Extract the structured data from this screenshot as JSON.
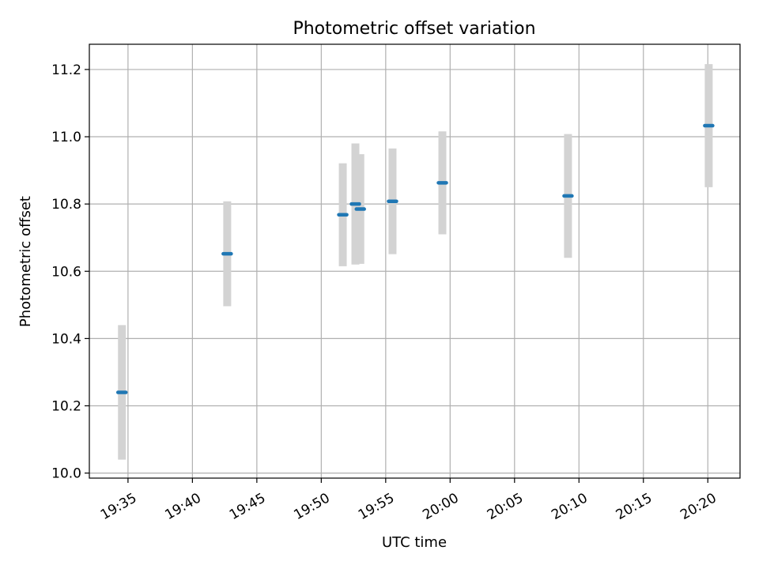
{
  "chart_data": {
    "type": "scatter",
    "title": "Photometric offset variation",
    "xlabel": "UTC time",
    "ylabel": "Photometric offset",
    "x_ticks": [
      "19:35",
      "19:40",
      "19:45",
      "19:50",
      "19:55",
      "20:00",
      "20:05",
      "20:10",
      "20:15",
      "20:20"
    ],
    "x_tick_minutes": [
      1175,
      1180,
      1185,
      1190,
      1195,
      1200,
      1205,
      1210,
      1215,
      1220
    ],
    "xlim_minutes": [
      1172.0,
      1222.5
    ],
    "ylim": [
      9.985,
      11.275
    ],
    "y_ticks": [
      "10.0",
      "10.2",
      "10.4",
      "10.6",
      "10.8",
      "11.0",
      "11.2"
    ],
    "y_tick_values": [
      10.0,
      10.2,
      10.4,
      10.6,
      10.8,
      11.0,
      11.2
    ],
    "grid": true,
    "colors": {
      "marker": "#1f77b4",
      "errorbar": "#d3d3d3",
      "grid": "#b0b0b0"
    },
    "points": [
      {
        "time": "19:34:32",
        "t": 1174.53,
        "y": 10.24,
        "err": 0.2
      },
      {
        "time": "19:42:42",
        "t": 1182.7,
        "y": 10.652,
        "err": 0.156
      },
      {
        "time": "19:51:40",
        "t": 1191.67,
        "y": 10.768,
        "err": 0.153
      },
      {
        "time": "19:52:39",
        "t": 1192.65,
        "y": 10.8,
        "err": 0.18
      },
      {
        "time": "19:53:02",
        "t": 1193.03,
        "y": 10.785,
        "err": 0.163
      },
      {
        "time": "19:55:32",
        "t": 1195.53,
        "y": 10.808,
        "err": 0.157
      },
      {
        "time": "19:59:24",
        "t": 1199.4,
        "y": 10.863,
        "err": 0.153
      },
      {
        "time": "20:09:09",
        "t": 1209.15,
        "y": 10.824,
        "err": 0.184
      },
      {
        "time": "20:20:04",
        "t": 1220.07,
        "y": 11.033,
        "err": 0.183
      }
    ]
  }
}
